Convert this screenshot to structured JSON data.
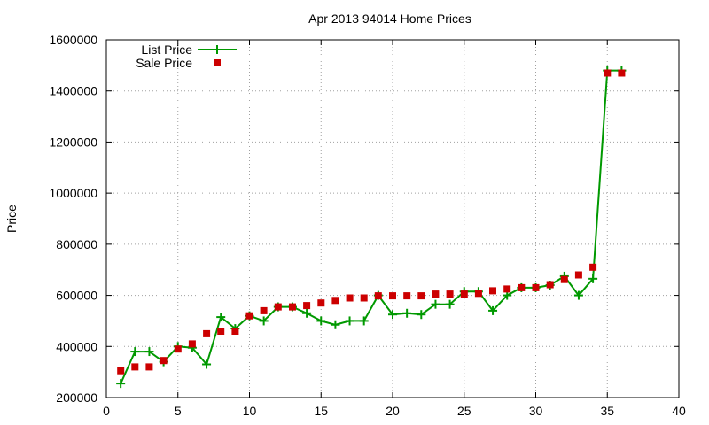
{
  "chart_data": {
    "type": "line",
    "title": "Apr 2013 94014 Home Prices",
    "xlabel": "",
    "ylabel": "Price",
    "xlim": [
      0,
      40
    ],
    "ylim": [
      200000,
      1600000
    ],
    "xticks": [
      0,
      5,
      10,
      15,
      20,
      25,
      30,
      35,
      40
    ],
    "yticks": [
      200000,
      400000,
      600000,
      800000,
      1000000,
      1200000,
      1400000,
      1600000
    ],
    "grid": true,
    "legend": "top-left",
    "series": [
      {
        "name": "List Price",
        "style": "line-plus",
        "color": "#009900",
        "x": [
          1,
          2,
          3,
          4,
          5,
          6,
          7,
          8,
          9,
          10,
          11,
          12,
          13,
          14,
          15,
          16,
          17,
          18,
          19,
          20,
          21,
          22,
          23,
          24,
          25,
          26,
          27,
          28,
          29,
          30,
          31,
          32,
          33,
          34,
          35,
          36
        ],
        "values": [
          255000,
          380000,
          380000,
          340000,
          400000,
          395000,
          330000,
          515000,
          470000,
          520000,
          500000,
          555000,
          555000,
          530000,
          500000,
          485000,
          500000,
          500000,
          600000,
          525000,
          530000,
          525000,
          565000,
          565000,
          615000,
          615000,
          540000,
          600000,
          630000,
          630000,
          640000,
          675000,
          600000,
          665000,
          1480000,
          1480000
        ]
      },
      {
        "name": "Sale Price",
        "style": "square",
        "color": "#cc0000",
        "x": [
          1,
          2,
          3,
          4,
          5,
          6,
          7,
          8,
          9,
          10,
          11,
          12,
          13,
          14,
          15,
          16,
          17,
          18,
          19,
          20,
          21,
          22,
          23,
          24,
          25,
          26,
          27,
          28,
          29,
          30,
          31,
          32,
          33,
          34,
          35,
          36
        ],
        "values": [
          305000,
          320000,
          320000,
          345000,
          390000,
          410000,
          450000,
          460000,
          460000,
          520000,
          540000,
          555000,
          555000,
          560000,
          570000,
          580000,
          590000,
          590000,
          598000,
          598000,
          598000,
          598000,
          605000,
          605000,
          605000,
          608000,
          618000,
          625000,
          630000,
          630000,
          642000,
          662000,
          680000,
          710000,
          1470000,
          1470000
        ]
      }
    ]
  }
}
